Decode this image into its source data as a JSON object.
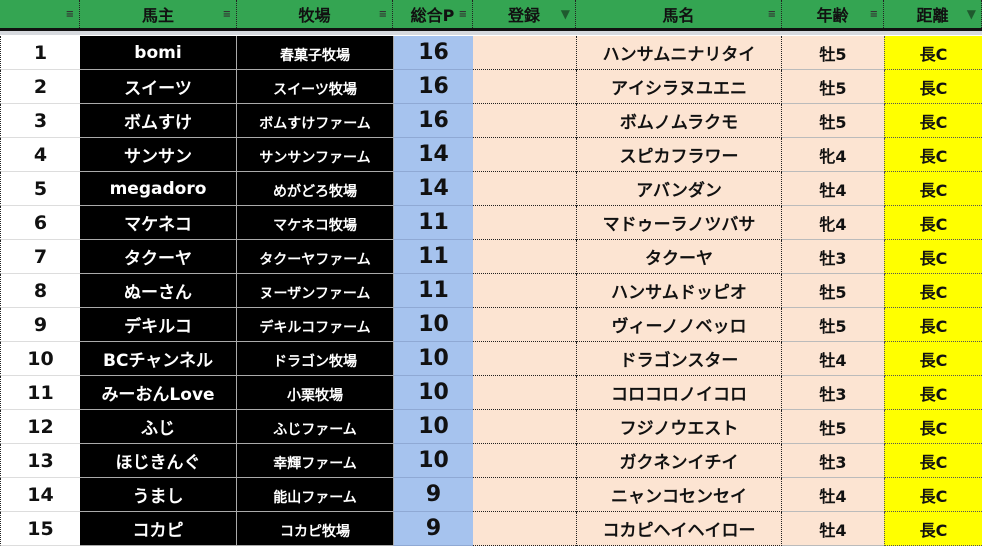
{
  "header": {
    "columns": [
      {
        "label": "",
        "filter_active": false
      },
      {
        "label": "馬主",
        "filter_active": false
      },
      {
        "label": "牧場",
        "filter_active": false
      },
      {
        "label": "総合P",
        "filter_active": false
      },
      {
        "label": "登録",
        "filter_active": true
      },
      {
        "label": "馬名",
        "filter_active": false
      },
      {
        "label": "年齢",
        "filter_active": false
      },
      {
        "label": "距離",
        "filter_active": true
      }
    ]
  },
  "colors": {
    "header": "#34a552",
    "owner_bg": "#000000",
    "points_bg": "#a6c3ee",
    "horse_bg": "#fce4d2",
    "distance_bg": "#ffff00"
  },
  "rows": [
    {
      "no": "1",
      "owner": "bomi",
      "farm": "春菓子牧場",
      "points": "16",
      "reg": "",
      "horse": "ハンサムニナリタイ",
      "age": "牡5",
      "dist": "長C"
    },
    {
      "no": "2",
      "owner": "スイーツ",
      "farm": "スイーツ牧場",
      "points": "16",
      "reg": "",
      "horse": "アイシラヌユエニ",
      "age": "牡5",
      "dist": "長C"
    },
    {
      "no": "3",
      "owner": "ボムすけ",
      "farm": "ボムすけファーム",
      "points": "16",
      "reg": "",
      "horse": "ボムノムラクモ",
      "age": "牡5",
      "dist": "長C"
    },
    {
      "no": "4",
      "owner": "サンサン",
      "farm": "サンサンファーム",
      "points": "14",
      "reg": "",
      "horse": "スピカフラワー",
      "age": "牝4",
      "dist": "長C"
    },
    {
      "no": "5",
      "owner": "megadoro",
      "farm": "めがどろ牧場",
      "points": "14",
      "reg": "",
      "horse": "アバンダン",
      "age": "牡4",
      "dist": "長C"
    },
    {
      "no": "6",
      "owner": "マケネコ",
      "farm": "マケネコ牧場",
      "points": "11",
      "reg": "",
      "horse": "マドゥーラノツバサ",
      "age": "牝4",
      "dist": "長C"
    },
    {
      "no": "7",
      "owner": "タクーヤ",
      "farm": "タクーヤファーム",
      "points": "11",
      "reg": "",
      "horse": "タクーヤ",
      "age": "牡3",
      "dist": "長C"
    },
    {
      "no": "8",
      "owner": "ぬーさん",
      "farm": "ヌーザンファーム",
      "points": "11",
      "reg": "",
      "horse": "ハンサムドッピオ",
      "age": "牡5",
      "dist": "長C"
    },
    {
      "no": "9",
      "owner": "デキルコ",
      "farm": "デキルコファーム",
      "points": "10",
      "reg": "",
      "horse": "ヴィーノノベッロ",
      "age": "牡5",
      "dist": "長C"
    },
    {
      "no": "10",
      "owner": "BCチャンネル",
      "farm": "ドラゴン牧場",
      "points": "10",
      "reg": "",
      "horse": "ドラゴンスター",
      "age": "牡4",
      "dist": "長C"
    },
    {
      "no": "11",
      "owner": "みーおんLove",
      "farm": "小栗牧場",
      "points": "10",
      "reg": "",
      "horse": "コロコロノイコロ",
      "age": "牡3",
      "dist": "長C"
    },
    {
      "no": "12",
      "owner": "ふじ",
      "farm": "ふじファーム",
      "points": "10",
      "reg": "",
      "horse": "フジノウエスト",
      "age": "牡5",
      "dist": "長C"
    },
    {
      "no": "13",
      "owner": "ほじきんぐ",
      "farm": "幸輝ファーム",
      "points": "10",
      "reg": "",
      "horse": "ガクネンイチイ",
      "age": "牡3",
      "dist": "長C"
    },
    {
      "no": "14",
      "owner": "うまし",
      "farm": "能山ファーム",
      "points": "9",
      "reg": "",
      "horse": "ニャンコセンセイ",
      "age": "牡4",
      "dist": "長C"
    },
    {
      "no": "15",
      "owner": "コカピ",
      "farm": "コカピ牧場",
      "points": "9",
      "reg": "",
      "horse": "コカピヘイヘイロー",
      "age": "牡4",
      "dist": "長C"
    }
  ]
}
